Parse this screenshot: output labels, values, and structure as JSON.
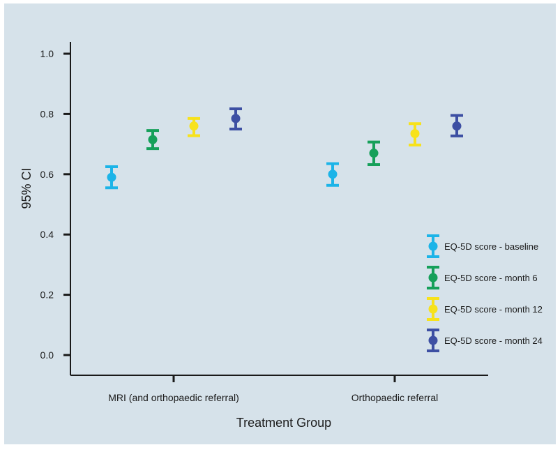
{
  "chart_data": {
    "type": "scatter",
    "subtype": "error-bar",
    "xlabel": "Treatment Group",
    "ylabel": "95% CI",
    "ylim": [
      0,
      1.05
    ],
    "yticks": [
      0.0,
      0.2,
      0.4,
      0.6,
      0.8,
      1.0
    ],
    "ytick_labels": [
      "0.0",
      "0.2",
      "0.4",
      "0.6",
      "0.8",
      "1.0"
    ],
    "categories": [
      "MRI (and orthopaedic referral)",
      "Orthopaedic referral"
    ],
    "series": [
      {
        "name": "EQ-5D score - baseline",
        "color": "#1cb4e8",
        "mean": [
          0.59,
          0.6
        ],
        "lower": [
          0.555,
          0.563
        ],
        "upper": [
          0.625,
          0.635
        ]
      },
      {
        "name": "EQ-5D score - month 6",
        "color": "#16a05a",
        "mean": [
          0.715,
          0.67
        ],
        "lower": [
          0.685,
          0.632
        ],
        "upper": [
          0.745,
          0.707
        ]
      },
      {
        "name": "EQ-5D score - month 12",
        "color": "#f7e21c",
        "mean": [
          0.76,
          0.735
        ],
        "lower": [
          0.728,
          0.697
        ],
        "upper": [
          0.785,
          0.768
        ]
      },
      {
        "name": "EQ-5D score - month 24",
        "color": "#3d4fa3",
        "mean": [
          0.785,
          0.76
        ],
        "lower": [
          0.75,
          0.727
        ],
        "upper": [
          0.817,
          0.795
        ]
      }
    ],
    "grid": false,
    "legend_position": "right"
  },
  "colors": {
    "panel_background": "#d6e2ea",
    "axis": "#1a1a1a"
  }
}
